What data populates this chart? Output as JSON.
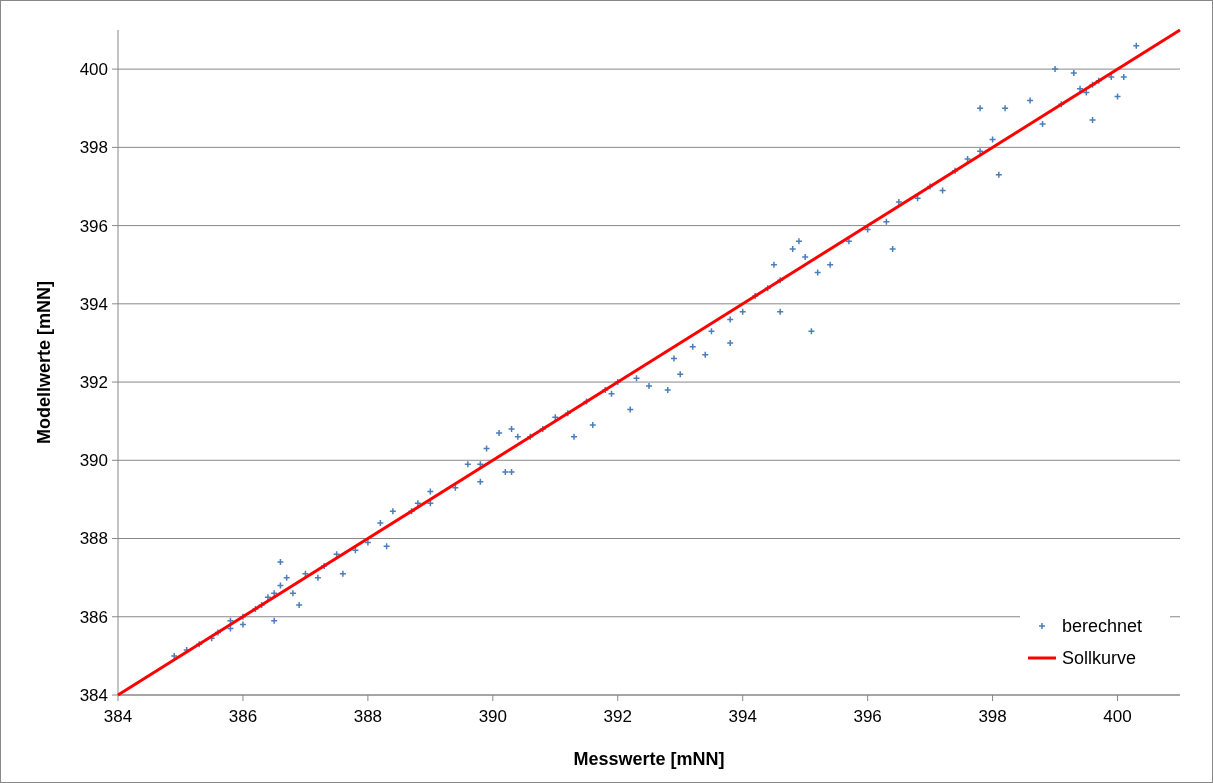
{
  "chart_data": {
    "type": "scatter",
    "xlabel": "Messwerte [mNN]",
    "ylabel": "Modellwerte [mNN]",
    "xlim": [
      384,
      401
    ],
    "ylim": [
      384,
      401
    ],
    "xticks": [
      384,
      386,
      388,
      390,
      392,
      394,
      396,
      398,
      400
    ],
    "yticks": [
      384,
      386,
      388,
      390,
      392,
      394,
      396,
      398,
      400
    ],
    "grid": "y",
    "legend": "bottom right",
    "series": [
      {
        "name": "berechnet",
        "marker": "cross",
        "color": "#4a7ebb",
        "x": [
          384.9,
          385.1,
          385.3,
          385.5,
          385.6,
          385.8,
          385.8,
          386.0,
          386.0,
          386.2,
          386.3,
          386.4,
          386.5,
          386.6,
          386.7,
          386.6,
          386.5,
          386.9,
          386.8,
          387.0,
          387.2,
          387.3,
          387.5,
          387.6,
          387.8,
          388.0,
          388.2,
          388.3,
          388.4,
          388.7,
          389.0,
          388.8,
          389.0,
          389.4,
          389.8,
          390.2,
          390.3,
          389.6,
          389.8,
          389.9,
          390.1,
          390.3,
          390.4,
          390.6,
          390.8,
          391.0,
          391.2,
          391.5,
          391.8,
          391.9,
          392.0,
          392.3,
          391.3,
          391.6,
          392.2,
          392.5,
          392.8,
          392.9,
          393.2,
          393.5,
          393.4,
          393.0,
          393.8,
          394.0,
          393.8,
          394.2,
          394.4,
          394.6,
          394.5,
          394.8,
          394.9,
          395.0,
          394.6,
          395.1,
          395.2,
          395.4,
          395.7,
          396.0,
          396.4,
          396.3,
          396.5,
          396.8,
          397.0,
          397.2,
          397.4,
          397.6,
          397.8,
          398.0,
          398.1,
          397.8,
          398.2,
          398.6,
          399.0,
          399.3,
          399.4,
          399.5,
          399.6,
          399.7,
          399.9,
          400.1,
          400.0,
          399.6,
          400.3,
          399.1,
          398.8
        ],
        "values": [
          385.0,
          385.15,
          385.3,
          385.45,
          385.6,
          385.7,
          385.9,
          386.0,
          385.8,
          386.2,
          386.3,
          386.5,
          386.6,
          386.8,
          387.0,
          387.4,
          385.9,
          386.3,
          386.6,
          387.1,
          387.0,
          387.3,
          387.6,
          387.1,
          387.7,
          387.9,
          388.4,
          387.8,
          388.7,
          388.7,
          388.9,
          388.9,
          389.2,
          389.3,
          389.45,
          389.7,
          389.7,
          389.9,
          389.9,
          390.3,
          390.7,
          390.8,
          390.6,
          390.6,
          390.8,
          391.1,
          391.2,
          391.5,
          391.8,
          391.7,
          392.0,
          392.1,
          390.6,
          390.9,
          391.3,
          391.9,
          391.8,
          392.6,
          392.9,
          393.3,
          392.7,
          392.2,
          393.6,
          393.8,
          393.0,
          394.2,
          394.4,
          394.6,
          395.0,
          395.4,
          395.6,
          395.2,
          393.8,
          393.3,
          394.8,
          395.0,
          395.6,
          395.9,
          395.4,
          396.1,
          396.6,
          396.7,
          397.0,
          396.9,
          397.4,
          397.7,
          397.9,
          398.2,
          397.3,
          399.0,
          399.0,
          399.2,
          400.0,
          399.9,
          399.5,
          399.4,
          399.6,
          399.7,
          399.8,
          399.8,
          399.3,
          398.7,
          400.6,
          399.1,
          398.6
        ]
      },
      {
        "name": "Sollkurve",
        "type": "line",
        "line_style": "solid",
        "color": "#ff0000",
        "x": [
          384,
          401
        ],
        "values": [
          384,
          401
        ]
      }
    ]
  }
}
